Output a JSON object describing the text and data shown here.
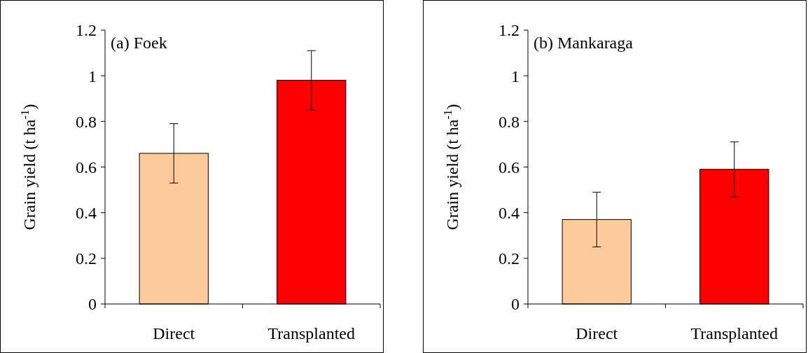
{
  "chart_data": [
    {
      "type": "bar",
      "title": "(a) Foek",
      "ylabel": "Grain yield (t ha$^{-1}$)",
      "categories": [
        "Direct",
        "Transplanted"
      ],
      "values": [
        0.66,
        0.98
      ],
      "colors": [
        "#fdca9a",
        "#ff0000"
      ],
      "errors": [
        0.13,
        0.13
      ],
      "ylim": [
        0,
        1.2
      ],
      "yticks": [
        0,
        0.2,
        0.4,
        0.6,
        0.8,
        1,
        1.2
      ]
    },
    {
      "type": "bar",
      "title": "(b) Mankaraga",
      "ylabel": "Grain yield (t ha$^{-1}$)",
      "categories": [
        "Direct",
        "Transplanted"
      ],
      "values": [
        0.37,
        0.59
      ],
      "colors": [
        "#fdca9a",
        "#ff0000"
      ],
      "errors": [
        0.12,
        0.12
      ],
      "ylim": [
        0,
        1.2
      ],
      "yticks": [
        0,
        0.2,
        0.4,
        0.6,
        0.8,
        1,
        1.2
      ]
    }
  ]
}
